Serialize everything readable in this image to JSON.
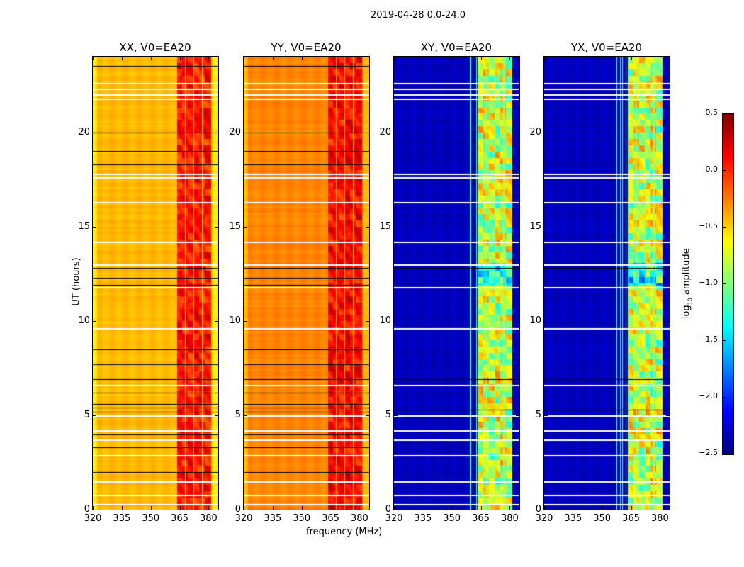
{
  "chart_data": {
    "type": "heatmap",
    "suptitle": "2019-04-28 0.0-24.0",
    "xlabel": "frequency (MHz)",
    "ylabel": "UT (hours)",
    "xlim": [
      320,
      385
    ],
    "ylim": [
      0,
      24
    ],
    "xticks": [
      "320",
      "335",
      "350",
      "365",
      "380"
    ],
    "xtick_values": [
      320,
      335,
      350,
      365,
      380
    ],
    "yticks": [
      "0",
      "5",
      "10",
      "15",
      "20"
    ],
    "ytick_values": [
      0,
      5,
      10,
      15,
      20
    ],
    "colormap": "jet",
    "colorbar": {
      "label_main": "log",
      "label_sub": "10",
      "label_rest": " amplitude",
      "range": [
        -2.5,
        0.5
      ],
      "ticks": [
        "0.5",
        "0.0",
        "−0.5",
        "−1.0",
        "−1.5",
        "−2.0",
        "−2.5"
      ],
      "tick_values": [
        0.5,
        0.0,
        -0.5,
        -1.0,
        -1.5,
        -2.0,
        -2.5
      ]
    },
    "band_mhz": [
      363,
      381
    ],
    "flagged_hours_white": [
      0.3,
      0.8,
      1.5,
      2.9,
      3.7,
      4.2,
      5.0,
      6.6,
      9.6,
      11.8,
      13.0,
      14.2,
      16.3,
      17.6,
      17.8,
      21.8,
      22.0,
      22.3,
      22.6
    ],
    "panels": [
      {
        "title": "XX, V0=EA20",
        "base_level": -0.45,
        "band_level": 0.05,
        "black_hours": [
          2.0,
          3.3,
          4.0,
          5.2,
          5.4,
          5.6,
          6.2,
          6.9,
          7.7,
          8.5,
          11.9,
          12.3,
          12.8,
          18.3,
          19.0,
          20.0,
          23.5
        ]
      },
      {
        "title": "YY, V0=EA20",
        "base_level": -0.3,
        "band_level": 0.1,
        "black_hours": [
          2.0,
          3.3,
          4.0,
          5.2,
          5.4,
          5.6,
          6.2,
          6.9,
          7.7,
          8.5,
          11.9,
          12.3,
          12.8,
          18.3,
          19.0,
          20.0,
          23.5
        ]
      },
      {
        "title": "XY, V0=EA20",
        "base_level": -2.35,
        "band_level": -0.8,
        "black_hours": [
          5.3,
          6.9,
          12.8
        ]
      },
      {
        "title": "YX, V0=EA20",
        "base_level": -2.35,
        "band_level": -0.8,
        "black_hours": [
          5.3,
          6.9,
          12.8
        ]
      }
    ]
  }
}
